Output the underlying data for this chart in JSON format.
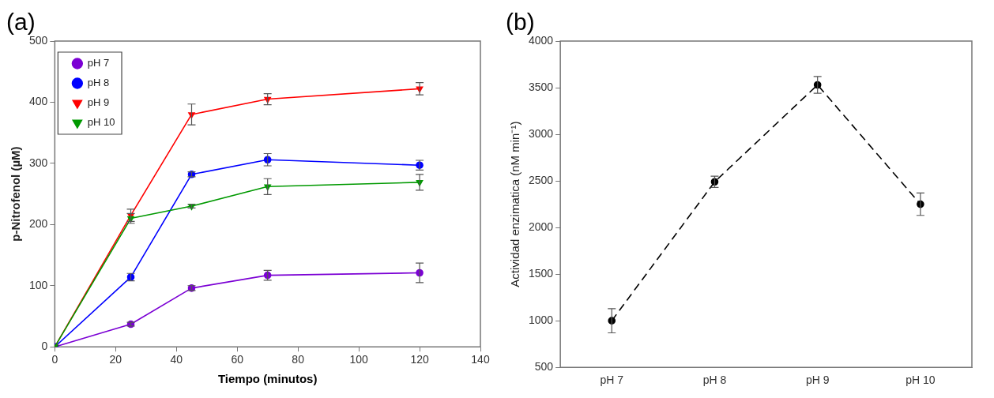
{
  "chart_data": [
    {
      "type": "line",
      "title": "(a)",
      "xlabel": "Tiempo (minutos)",
      "ylabel": "p-Nitrofenol (µM)",
      "x": [
        0,
        25,
        45,
        70,
        120
      ],
      "xlim": [
        0,
        140
      ],
      "xticks": [
        0,
        20,
        40,
        60,
        80,
        100,
        120,
        140
      ],
      "ylim": [
        0,
        500
      ],
      "yticks": [
        0,
        100,
        200,
        300,
        400,
        500
      ],
      "grid": false,
      "legend": "top left",
      "series": [
        {
          "name": "pH 7",
          "color": "#7b00d4",
          "marker": "circle",
          "values": [
            0,
            37,
            96,
            117,
            121
          ],
          "errors": [
            0,
            3,
            4,
            8,
            16
          ]
        },
        {
          "name": "pH 8",
          "color": "#0000ff",
          "marker": "circle",
          "values": [
            0,
            114,
            282,
            306,
            297
          ],
          "errors": [
            0,
            6,
            4,
            10,
            8
          ]
        },
        {
          "name": "pH 9",
          "color": "#ff0000",
          "marker": "triangle",
          "values": [
            0,
            215,
            380,
            405,
            422
          ],
          "errors": [
            0,
            10,
            17,
            9,
            10
          ]
        },
        {
          "name": "pH 10",
          "color": "#009900",
          "marker": "triangle",
          "values": [
            0,
            210,
            230,
            262,
            269
          ],
          "errors": [
            0,
            8,
            3,
            13,
            13
          ]
        }
      ]
    },
    {
      "type": "line",
      "title": "(b)",
      "ylabel": "Actividad enzimatica (nM min⁻¹)",
      "categories": [
        "pH 7",
        "pH 8",
        "pH 9",
        "pH 10"
      ],
      "ylim": [
        500,
        4000
      ],
      "yticks": [
        500,
        1000,
        1500,
        2000,
        2500,
        3000,
        3500,
        4000
      ],
      "grid": false,
      "legend": false,
      "marker": "circle",
      "line_style": "dashed",
      "series": [
        {
          "color": "#000000",
          "values": [
            1000,
            2490,
            3530,
            2250
          ],
          "errors": [
            130,
            60,
            90,
            120
          ]
        }
      ]
    }
  ]
}
